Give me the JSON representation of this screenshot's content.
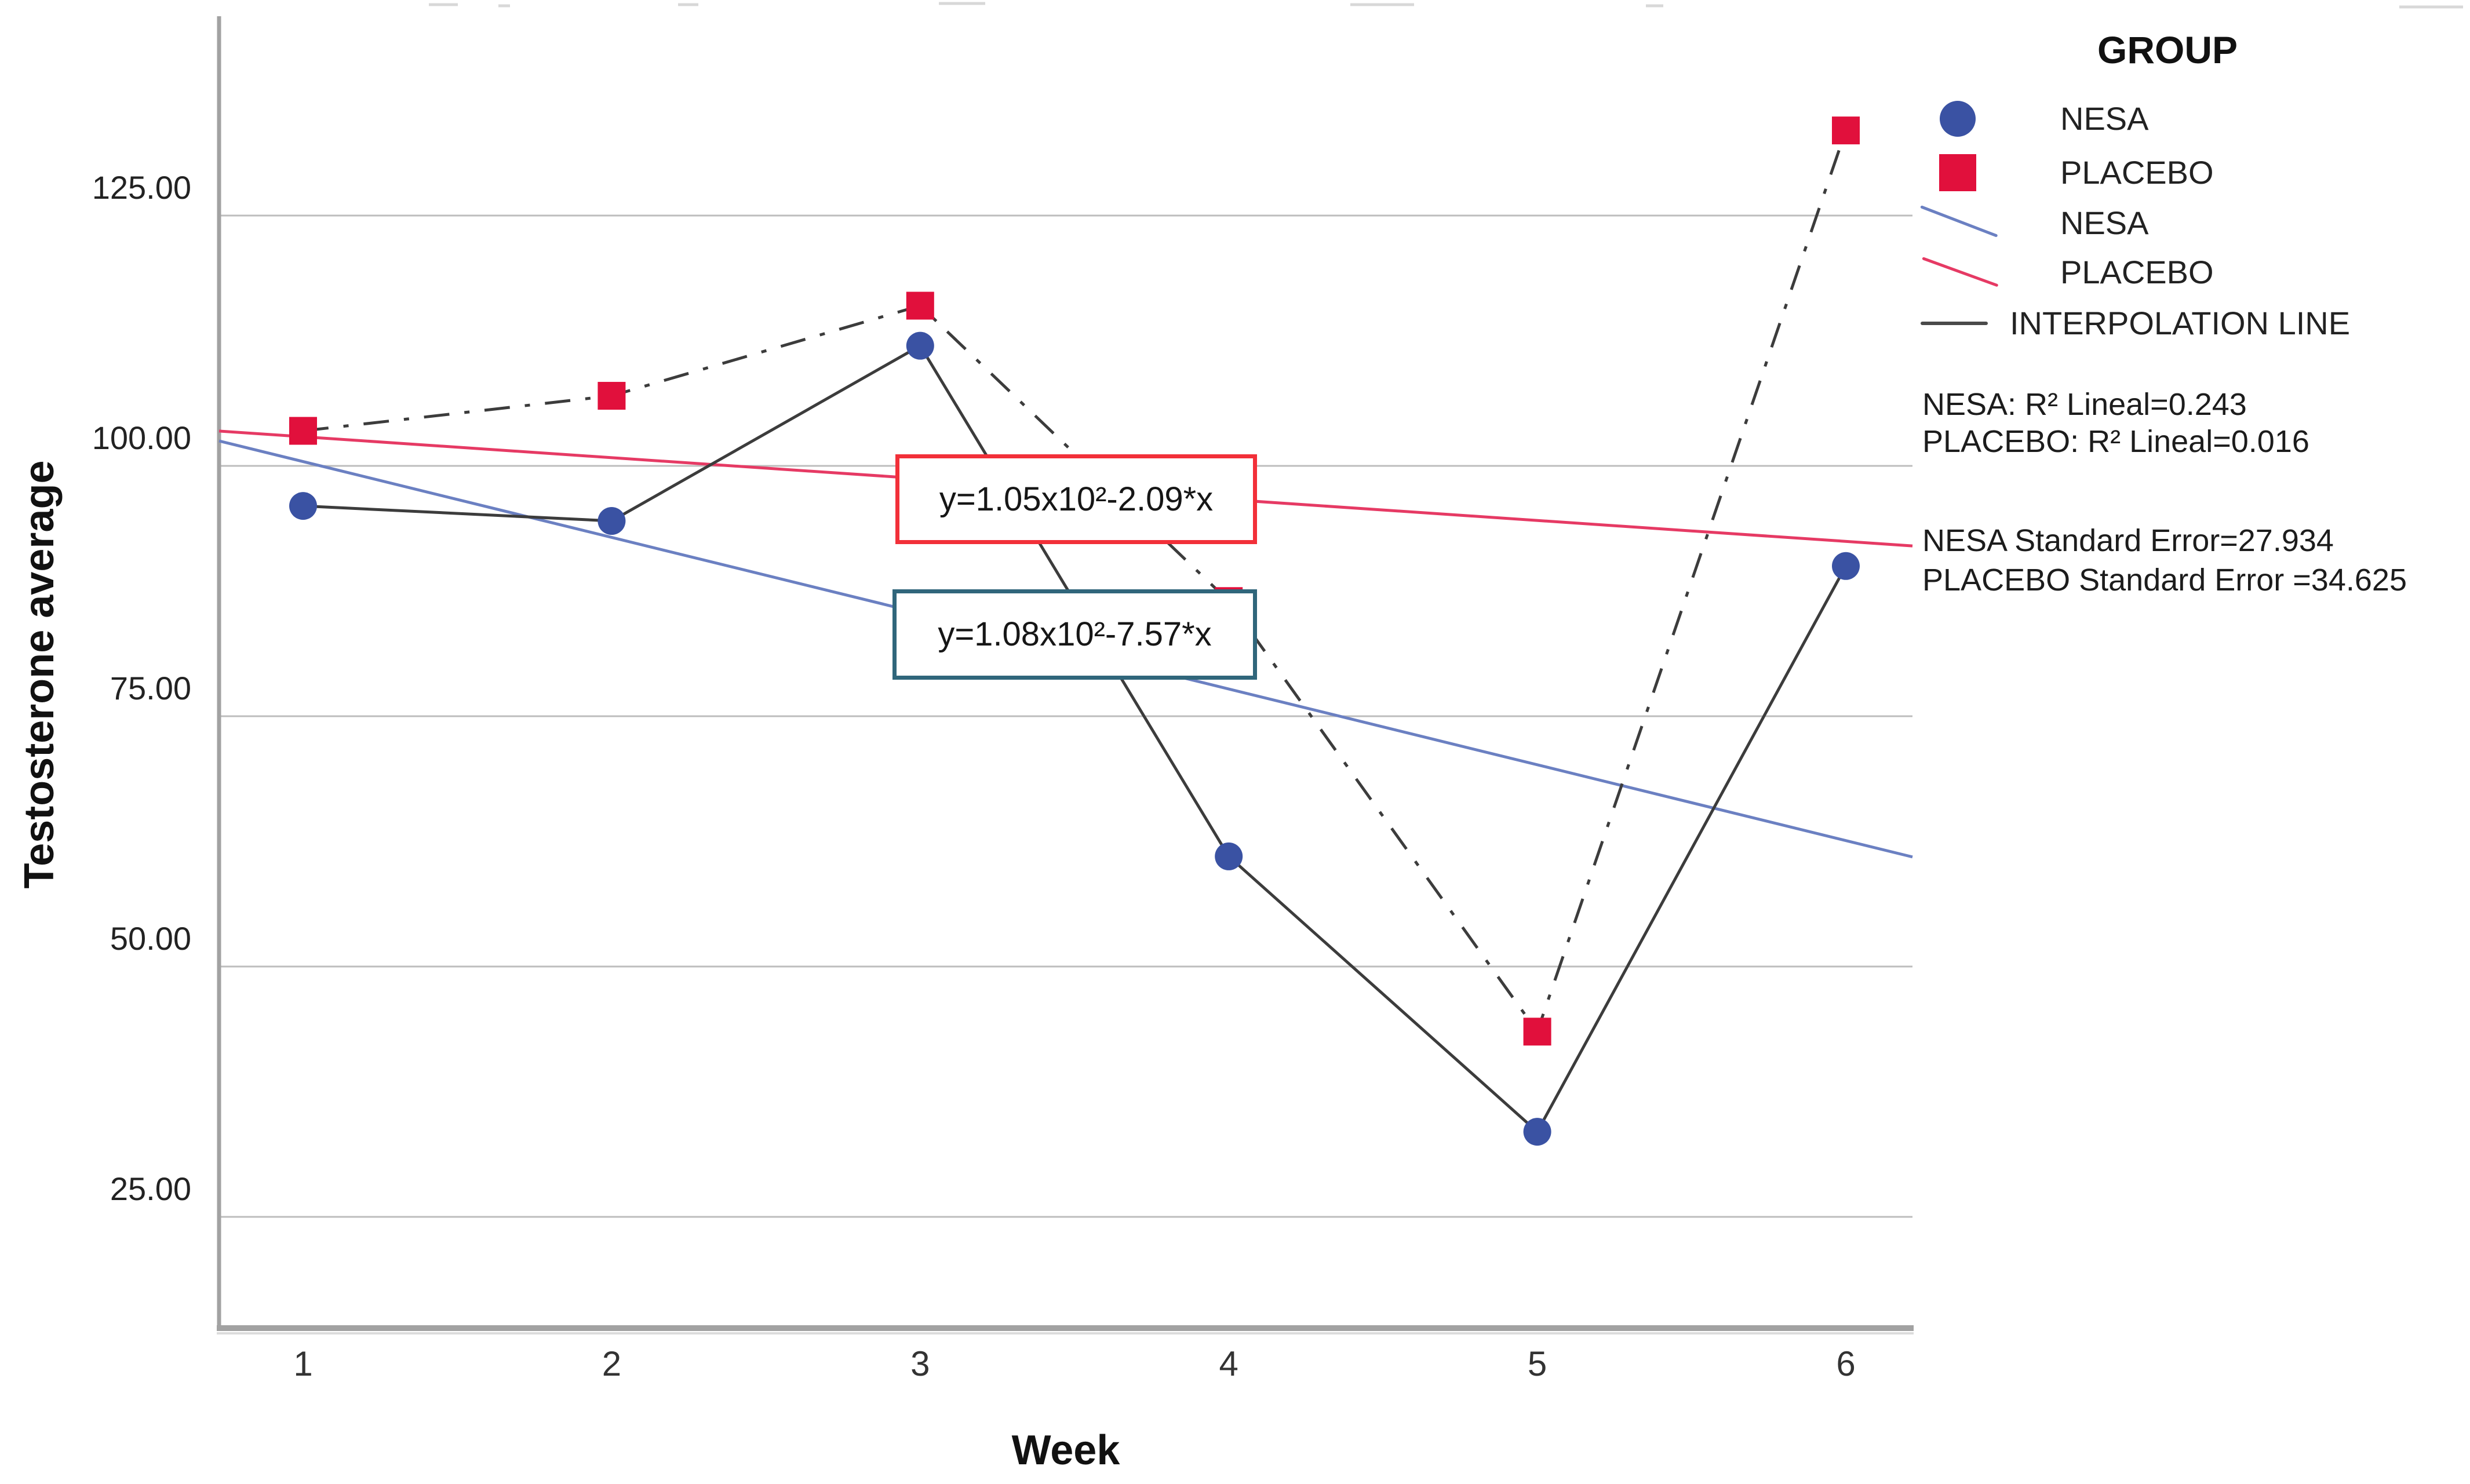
{
  "chart_data": {
    "type": "scatter",
    "title": "",
    "xlabel": "Week",
    "ylabel": "Testosterone average",
    "weeks": [
      1,
      2,
      3,
      4,
      5,
      6
    ],
    "x_tick_labels": [
      "1",
      "2",
      "3",
      "4",
      "5",
      "6"
    ],
    "y_tick_labels": [
      "125.00",
      "100.00",
      "75.00",
      "50.00",
      "25.00"
    ],
    "y_tick_values": [
      125,
      100,
      75,
      50,
      25
    ],
    "xlim": [
      0.73,
      6.22
    ],
    "ylim": [
      14,
      145
    ],
    "grid": "horizontal-only",
    "legend_position": "right",
    "series": [
      {
        "name": "NESA",
        "marker": "circle",
        "color": "#3a52a3",
        "values": [
          96,
          94.5,
          112,
          61,
          33.5,
          90
        ]
      },
      {
        "name": "PLACEBO",
        "marker": "square",
        "color": "#e1103c",
        "values": [
          103.5,
          107,
          116,
          86.5,
          43.5,
          133.5
        ]
      }
    ],
    "fit_lines": [
      {
        "name": "NESA",
        "color": "#6b80c2",
        "intercept": 108,
        "slope": -7.57,
        "equation": "y=1.08x10²-7.57*x",
        "r2": 0.243,
        "std_error": 27.934
      },
      {
        "name": "PLACEBO",
        "color": "#e63a64",
        "intercept": 105,
        "slope": -2.09,
        "equation": "y=1.05x10²-2.09*x",
        "r2": 0.016,
        "std_error": 34.625
      }
    ],
    "interpolation_line_color": "#3c3c3c",
    "interpolation_styles": {
      "NESA": "solid",
      "PLACEBO": "dash-dot"
    }
  },
  "axes": {
    "x_title": "Week",
    "y_title": "Testosterone average"
  },
  "annotations": {
    "placebo_equation": "y=1.05x10²-2.09*x",
    "nesa_equation": "y=1.08x10²-7.57*x"
  },
  "legend": {
    "title": "GROUP",
    "items": [
      {
        "label": "NESA",
        "glyph": "blue-circle-marker"
      },
      {
        "label": "PLACEBO",
        "glyph": "red-square-marker"
      },
      {
        "label": "NESA",
        "glyph": "blue-fit-line"
      },
      {
        "label": "PLACEBO",
        "glyph": "pink-fit-line"
      },
      {
        "label": "INTERPOLATION LINE",
        "glyph": "gray-line"
      }
    ],
    "stats_lines": [
      "NESA: R² Lineal=0.243",
      "PLACEBO: R² Lineal=0.016"
    ],
    "error_lines": [
      "NESA Standard Error=27.934",
      "PLACEBO Standard Error =34.625"
    ]
  }
}
